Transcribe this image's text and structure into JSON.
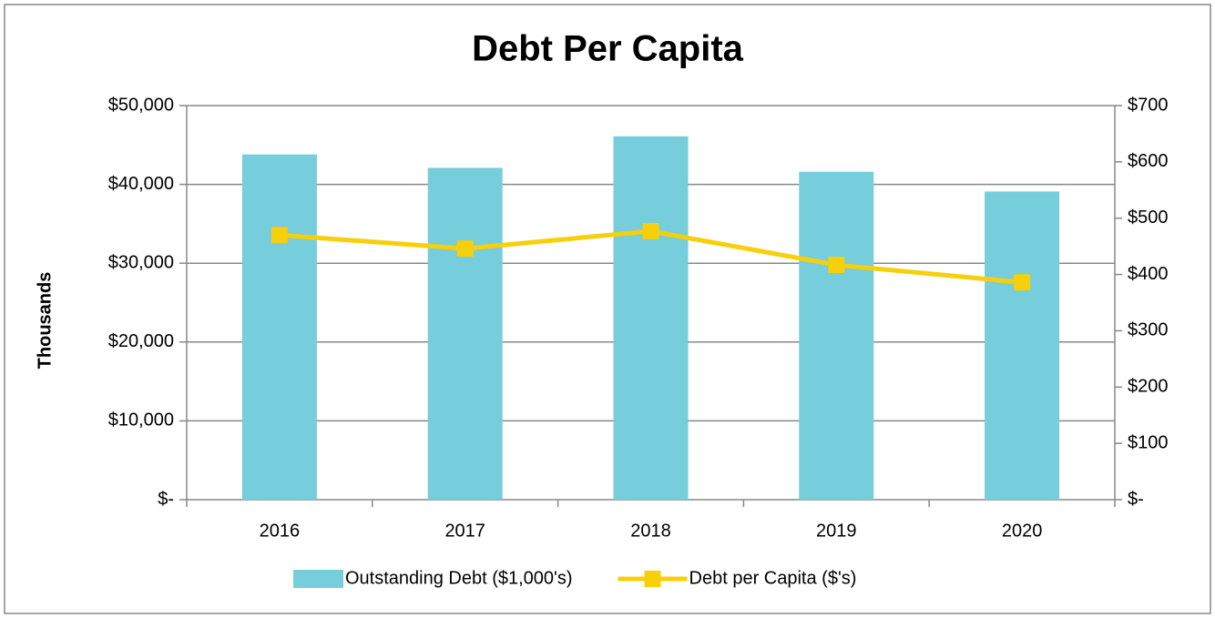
{
  "chart_data": {
    "type": "bar-line",
    "title": "Debt Per Capita",
    "y_label": "Thousands",
    "categories": [
      "2016",
      "2017",
      "2018",
      "2019",
      "2020"
    ],
    "series": [
      {
        "name": "Outstanding Debt ($1,000's)",
        "type": "bar",
        "color": "#76cddc",
        "values": [
          43800,
          42100,
          46100,
          41600,
          39100
        ]
      },
      {
        "name": "Debt per Capita ($'s)",
        "type": "line",
        "axis": "y2",
        "color": "#f7cf0a",
        "values": [
          470,
          446,
          477,
          417,
          386
        ]
      }
    ],
    "ylim": [
      0,
      50000
    ],
    "yticks": [
      {
        "value": 0,
        "label": "$-"
      },
      {
        "value": 10000,
        "label": "$10,000"
      },
      {
        "value": 20000,
        "label": "$20,000"
      },
      {
        "value": 30000,
        "label": "$30,000"
      },
      {
        "value": 40000,
        "label": "$40,000"
      },
      {
        "value": 50000,
        "label": "$50,000"
      }
    ],
    "y2lim": [
      0,
      700
    ],
    "y2ticks": [
      {
        "value": 0,
        "label": "$-"
      },
      {
        "value": 100,
        "label": "$100"
      },
      {
        "value": 200,
        "label": "$200"
      },
      {
        "value": 300,
        "label": "$300"
      },
      {
        "value": 400,
        "label": "$400"
      },
      {
        "value": 500,
        "label": "$500"
      },
      {
        "value": 600,
        "label": "$600"
      },
      {
        "value": 700,
        "label": "$700"
      }
    ],
    "grid": true,
    "legend": "bottom"
  }
}
